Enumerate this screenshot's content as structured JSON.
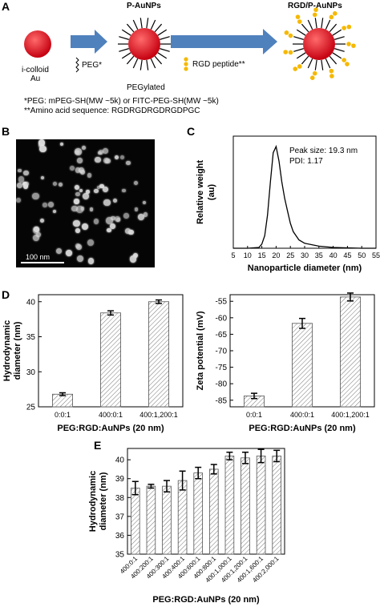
{
  "panel_A": {
    "label": "A",
    "title_paunps": "P-AuNPs",
    "title_rgd": "RGD/P-AuNPs",
    "colloid_line1": "i-colloid",
    "colloid_line2": "Au",
    "peg_arrow_label": "PEG*",
    "pegylated_label": "PEGylated",
    "rgd_legend": "RGD peptide**",
    "footnote1": "*PEG: mPEG-SH(MW ~5k) or FITC-PEG-SH(MW ~5k)",
    "footnote2": "**Amino acid sequence: RGDRGDRGDRGDPGC",
    "colors": {
      "particle": "#e8101e",
      "arrow": "#4f81bd",
      "peptide": "#f5b800"
    }
  },
  "panel_B": {
    "label": "B",
    "scalebar": "100 nm"
  },
  "panel_C": {
    "label": "C",
    "annotation1": "Peak size: 19.3 nm",
    "annotation2": "PDI: 1.17"
  },
  "panel_D": {
    "label": "D"
  },
  "panel_E": {
    "label": "E"
  },
  "chart_data": [
    {
      "id": "C",
      "type": "line",
      "xlabel": "Nanoparticle diameter (nm)",
      "ylabel_line1": "Relative weight",
      "ylabel_line2": "(au)",
      "xlim": [
        5,
        55
      ],
      "xticks": [
        "5",
        "10",
        "15",
        "20",
        "25",
        "30",
        "35",
        "40",
        "45",
        "50",
        "55"
      ],
      "x": [
        5,
        10,
        14,
        15,
        16,
        17,
        18,
        19,
        20,
        21,
        22,
        23,
        24,
        25,
        26,
        28,
        30,
        35,
        40,
        45,
        50,
        55
      ],
      "y": [
        0,
        0,
        0.002,
        0.01,
        0.03,
        0.08,
        0.16,
        0.23,
        0.245,
        0.21,
        0.16,
        0.12,
        0.09,
        0.06,
        0.04,
        0.02,
        0.012,
        0.005,
        0.002,
        0.001,
        0,
        0
      ],
      "ylim": [
        0,
        0.27
      ]
    },
    {
      "id": "D1",
      "type": "bar",
      "xlabel": "PEG:RGD:AuNPs (20 nm)",
      "ylabel_line1": "Hydrodynamic",
      "ylabel_line2": "diameter (nm)",
      "categories": [
        "0:0:1",
        "400:0:1",
        "400:1,200:1"
      ],
      "values": [
        26.8,
        38.4,
        40.0
      ],
      "errors": [
        0.2,
        0.3,
        0.25
      ],
      "ylim": [
        25,
        41
      ],
      "yticks": [
        "25",
        "30",
        "35",
        "40"
      ]
    },
    {
      "id": "D2",
      "type": "bar",
      "xlabel": "PEG:RGD:AuNPs (20 nm)",
      "ylabel": "Zeta potential (mV)",
      "categories": [
        "0:0:1",
        "400:0:1",
        "400:1,200:1"
      ],
      "values": [
        -83.7,
        -61.7,
        -53.7
      ],
      "errors": [
        0.8,
        1.5,
        1.2
      ],
      "ylim": [
        -87,
        -53
      ],
      "yticks": [
        "-85",
        "-80",
        "-75",
        "-70",
        "-65",
        "-60",
        "-55"
      ]
    },
    {
      "id": "E",
      "type": "bar",
      "xlabel": "PEG:RGD:AuNPs (20 nm)",
      "ylabel_line1": "Hydrodynamic",
      "ylabel_line2": "diameter (nm)",
      "categories": [
        "400:0:1",
        "400:200:1",
        "400:300:1",
        "400:400:1",
        "400:600:1",
        "400:800:1",
        "400:1,000:1",
        "400:1,200:1",
        "400:1,600:1",
        "400:2,000:1"
      ],
      "values": [
        38.5,
        38.6,
        38.6,
        38.9,
        39.3,
        39.5,
        40.2,
        40.1,
        40.2,
        40.2
      ],
      "errors": [
        0.35,
        0.1,
        0.3,
        0.5,
        0.3,
        0.25,
        0.2,
        0.3,
        0.35,
        0.3
      ],
      "ylim": [
        35,
        40.6
      ],
      "yticks": [
        "35",
        "36",
        "37",
        "38",
        "39",
        "40"
      ]
    }
  ]
}
